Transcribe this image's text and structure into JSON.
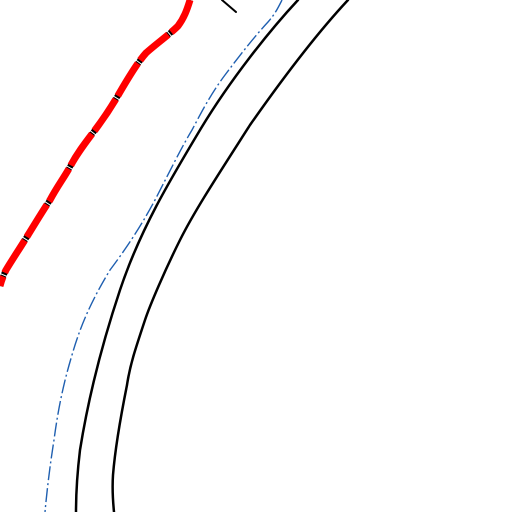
{
  "map": {
    "background_color": "#ffffff",
    "features": [
      {
        "kind": "road-edge",
        "name": "road-outer-edge",
        "color": "#000000"
      },
      {
        "kind": "road-edge",
        "name": "road-inner-edge",
        "color": "#000000"
      },
      {
        "kind": "stream",
        "name": "blue-dash-dot-line",
        "color": "#1f5fb0"
      },
      {
        "kind": "boundary",
        "name": "red-dashed-boundary",
        "color": "#ff0000",
        "break_color": "#000000"
      }
    ]
  }
}
